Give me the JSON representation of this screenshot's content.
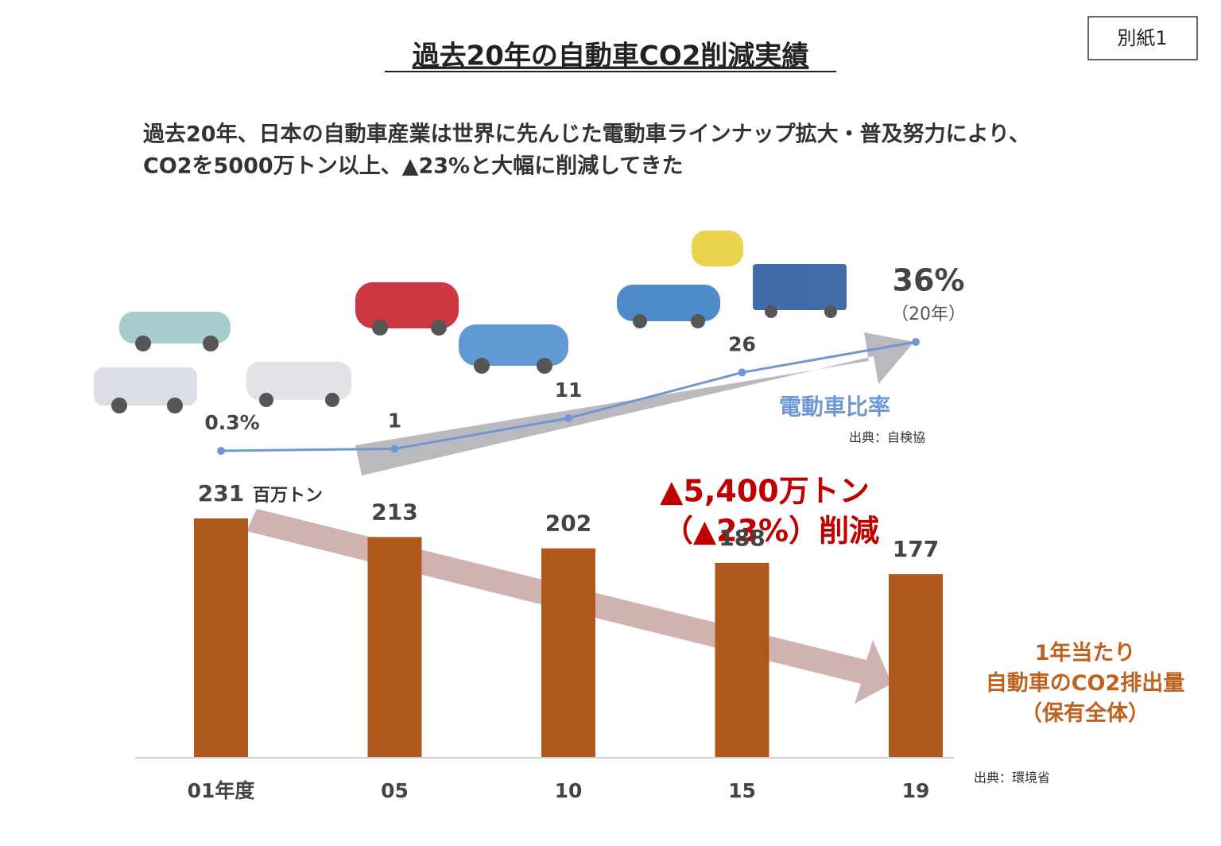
{
  "tag": "別紙1",
  "chart_data": {
    "type": "combo",
    "title": "過去20年の自動車CO2削減実績",
    "subtitle": [
      "過去20年、日本の自動車産業は世界に先んじた電動車ラインナップ拡大・普及努力により、",
      "CO2を5000万トン以上、▲23%と大幅に削減してきた"
    ],
    "categories": [
      "01年度",
      "05",
      "10",
      "15",
      "19"
    ],
    "ylim": [
      0,
      300
    ],
    "y2lim": [
      0,
      40
    ],
    "series": [
      {
        "name": "1年当たり\n自動車のCO2排出量\n（保有全体）",
        "type": "bar",
        "color": "#b0591f",
        "values": [
          231,
          213,
          202,
          188,
          177
        ],
        "unit": "百万トン",
        "source": "出典：環境省"
      },
      {
        "name": "電動車比率",
        "type": "line",
        "axis": "y2",
        "color": "#6e98d4",
        "values": [
          0.3,
          1,
          11,
          26,
          36
        ],
        "value_labels": [
          "0.3%",
          "1",
          "11",
          "26",
          "36%"
        ],
        "source": "出典：自検協",
        "last_note": "（20年）"
      }
    ],
    "annotations": [
      "▲5,400万トン",
      "（▲23%）削減"
    ]
  }
}
